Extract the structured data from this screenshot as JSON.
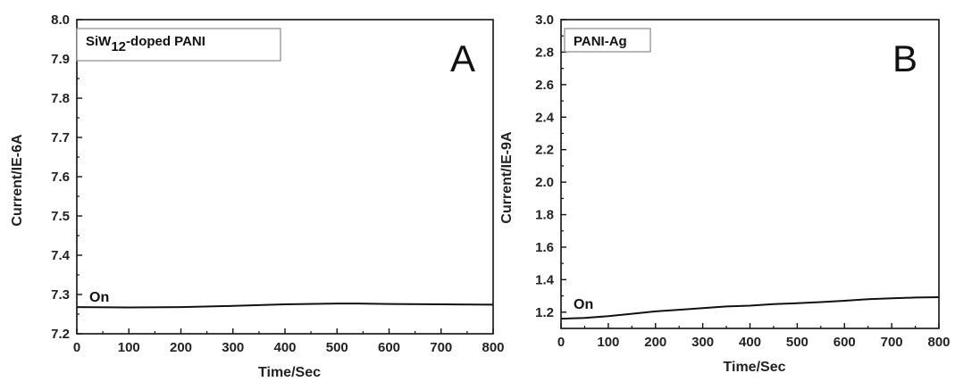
{
  "chart_data": [
    {
      "type": "line",
      "panel_label": "A",
      "legend": {
        "prefix": "SiW",
        "sub": "12",
        "suffix": "-doped PANI"
      },
      "xlabel": "Time/Sec",
      "ylabel": "Current/IE-6A",
      "xlim": [
        0,
        800
      ],
      "ylim": [
        7.2,
        8.0
      ],
      "xticks": [
        0,
        100,
        200,
        300,
        400,
        500,
        600,
        700,
        800
      ],
      "yticks": [
        "7.2",
        "7.3",
        "7.4",
        "7.5",
        "7.6",
        "7.7",
        "7.8",
        "7.9",
        "8.0"
      ],
      "annotation": "On",
      "series": [
        {
          "x": [
            0,
            100,
            200,
            300,
            400,
            500,
            540,
            600,
            700,
            800
          ],
          "y": [
            7.268,
            7.267,
            7.268,
            7.271,
            7.275,
            7.277,
            7.277,
            7.276,
            7.275,
            7.274
          ]
        }
      ]
    },
    {
      "type": "line",
      "panel_label": "B",
      "legend": {
        "prefix": "PANI-Ag",
        "sub": "",
        "suffix": ""
      },
      "xlabel": "Time/Sec",
      "ylabel": "Current/IE-9A",
      "xlim": [
        0,
        800
      ],
      "ylim": [
        1.1,
        3.0
      ],
      "xticks": [
        0,
        100,
        200,
        300,
        400,
        500,
        600,
        700,
        800
      ],
      "yticks": [
        "1.2",
        "1.4",
        "1.6",
        "1.8",
        "2.0",
        "2.2",
        "2.4",
        "2.6",
        "2.8",
        "3.0"
      ],
      "annotation": "On",
      "series": [
        {
          "x": [
            0,
            50,
            100,
            150,
            200,
            250,
            300,
            350,
            400,
            450,
            500,
            550,
            600,
            650,
            700,
            750,
            800
          ],
          "y": [
            1.16,
            1.165,
            1.175,
            1.19,
            1.205,
            1.215,
            1.225,
            1.235,
            1.24,
            1.25,
            1.255,
            1.262,
            1.27,
            1.28,
            1.285,
            1.29,
            1.292
          ]
        }
      ]
    }
  ]
}
